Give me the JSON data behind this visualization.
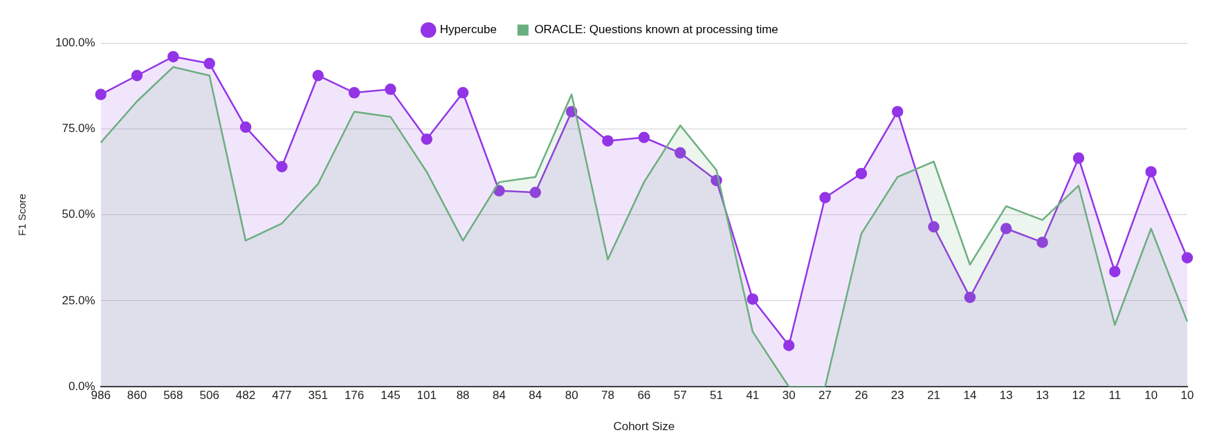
{
  "chart_data": {
    "type": "area",
    "xlabel": "Cohort Size",
    "ylabel": "F1 Score",
    "categories": [
      "986",
      "860",
      "568",
      "506",
      "482",
      "477",
      "351",
      "176",
      "145",
      "101",
      "88",
      "84",
      "84",
      "80",
      "78",
      "66",
      "57",
      "51",
      "41",
      "30",
      "27",
      "26",
      "23",
      "21",
      "14",
      "13",
      "13",
      "12",
      "11",
      "10",
      "10"
    ],
    "series": [
      {
        "name": "Hypercube",
        "color": "#9334e6",
        "marker": "circle",
        "values": [
          85,
          90.5,
          96,
          94,
          75.5,
          64,
          90.5,
          85.5,
          86.5,
          72,
          85.5,
          57,
          56.5,
          80,
          71.5,
          72.5,
          68,
          60,
          25.5,
          12,
          55,
          62,
          80,
          46.5,
          26,
          46,
          42,
          66.5,
          33.5,
          62.5,
          37.5
        ]
      },
      {
        "name": "ORACLE: Questions known at processing time",
        "color": "#6aaf7e",
        "marker": "none",
        "values": [
          71,
          83,
          93,
          90.5,
          42.5,
          47.5,
          59,
          80,
          78.5,
          62.5,
          42.5,
          59.5,
          61,
          85,
          37,
          59.5,
          76,
          63,
          16,
          0,
          0,
          44.5,
          61,
          65.5,
          35.5,
          52.5,
          48.5,
          58.5,
          18,
          46,
          19
        ]
      }
    ],
    "ylim": [
      0,
      100
    ],
    "yticks": [
      {
        "value": 0,
        "label": "0.0%"
      },
      {
        "value": 25,
        "label": "25.0%"
      },
      {
        "value": 50,
        "label": "50.0%"
      },
      {
        "value": 75,
        "label": "75.0%"
      },
      {
        "value": 100,
        "label": "100.0%"
      }
    ],
    "grid": "y",
    "legend": "top"
  }
}
